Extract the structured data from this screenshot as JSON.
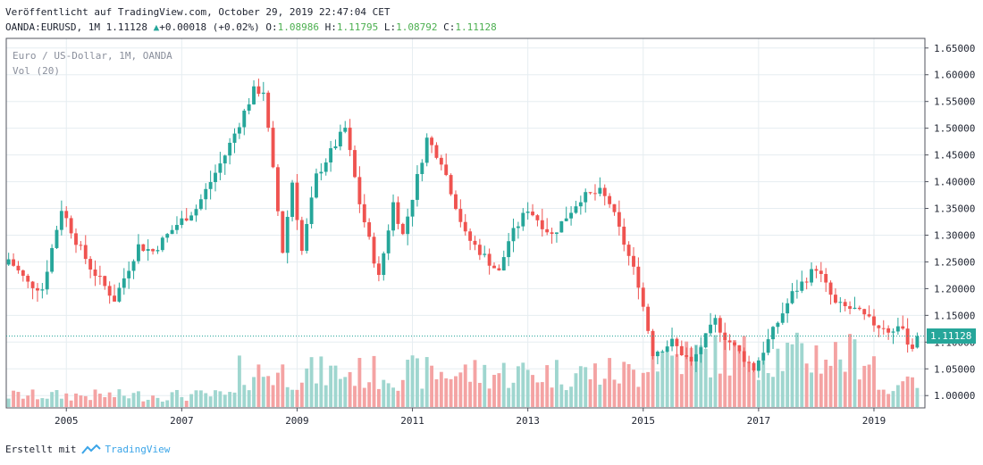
{
  "header": {
    "published": "Veröffentlicht auf TradingView.com, October 29, 2019 22:47:04 CET",
    "symbol": "OANDA:EURUSD, 1M 1.11128",
    "change_arrow": "▲",
    "change": "+0.00018 (+0.02%)",
    "o_label": "O:",
    "o_value": "1.08986",
    "h_label": "H:",
    "h_value": "1.11795",
    "l_label": "L:",
    "l_value": "1.08792",
    "c_label": "C:",
    "c_value": "1.11128"
  },
  "overlay": {
    "title": "Euro / US-Dollar, 1M, OANDA",
    "volume": "Vol (20)"
  },
  "last_price": "1.11128",
  "footer": {
    "created_with": "Erstellt mit",
    "brand": "TradingView"
  },
  "colors": {
    "up": "#26a69a",
    "down": "#ef5350",
    "vol_up": "#9fd6cf",
    "vol_down": "#f4a3a3",
    "grid": "#e6edf1",
    "brand": "#3ba5e8"
  },
  "chart_data": {
    "type": "candlestick",
    "symbol": "EURUSD",
    "interval": "1M",
    "x_tick_labels": [
      "2005",
      "2007",
      "2009",
      "2011",
      "2013",
      "2015",
      "2017",
      "2019"
    ],
    "y_tick_labels": [
      "1.00000",
      "1.05000",
      "1.10000",
      "1.15000",
      "1.20000",
      "1.25000",
      "1.30000",
      "1.35000",
      "1.40000",
      "1.45000",
      "1.50000",
      "1.55000",
      "1.60000",
      "1.65000"
    ],
    "ylim": [
      0.977,
      1.668
    ],
    "grid": true,
    "waypoints": [
      [
        "2004-01",
        1.255
      ],
      [
        "2004-05",
        1.21
      ],
      [
        "2004-08",
        1.2
      ],
      [
        "2004-12",
        1.35
      ],
      [
        "2005-03",
        1.29
      ],
      [
        "2005-06",
        1.24
      ],
      [
        "2005-11",
        1.18
      ],
      [
        "2006-04",
        1.28
      ],
      [
        "2006-07",
        1.27
      ],
      [
        "2006-12",
        1.32
      ],
      [
        "2007-04",
        1.35
      ],
      [
        "2007-10",
        1.45
      ],
      [
        "2008-04",
        1.57
      ],
      [
        "2008-06",
        1.57
      ],
      [
        "2008-10",
        1.27
      ],
      [
        "2008-12",
        1.4
      ],
      [
        "2009-02",
        1.27
      ],
      [
        "2009-05",
        1.41
      ],
      [
        "2009-11",
        1.5
      ],
      [
        "2010-02",
        1.36
      ],
      [
        "2010-06",
        1.22
      ],
      [
        "2010-09",
        1.36
      ],
      [
        "2010-11",
        1.3
      ],
      [
        "2011-04",
        1.48
      ],
      [
        "2011-07",
        1.44
      ],
      [
        "2011-12",
        1.3
      ],
      [
        "2012-07",
        1.23
      ],
      [
        "2012-09",
        1.29
      ],
      [
        "2013-01",
        1.35
      ],
      [
        "2013-06",
        1.3
      ],
      [
        "2013-12",
        1.37
      ],
      [
        "2014-04",
        1.38
      ],
      [
        "2014-06",
        1.36
      ],
      [
        "2014-12",
        1.21
      ],
      [
        "2015-03",
        1.08
      ],
      [
        "2015-07",
        1.1
      ],
      [
        "2015-11",
        1.06
      ],
      [
        "2016-04",
        1.14
      ],
      [
        "2016-06",
        1.11
      ],
      [
        "2016-12",
        1.05
      ],
      [
        "2017-08",
        1.19
      ],
      [
        "2018-01",
        1.24
      ],
      [
        "2018-05",
        1.17
      ],
      [
        "2018-09",
        1.16
      ],
      [
        "2018-12",
        1.14
      ],
      [
        "2019-04",
        1.12
      ],
      [
        "2019-06",
        1.13
      ],
      [
        "2019-09",
        1.09
      ],
      [
        "2019-10",
        1.11128
      ]
    ],
    "last_bar": {
      "date": "2019-10",
      "open": 1.08986,
      "high": 1.11795,
      "low": 1.08792,
      "close": 1.11128
    },
    "volume_indicator": "Vol (20)"
  }
}
